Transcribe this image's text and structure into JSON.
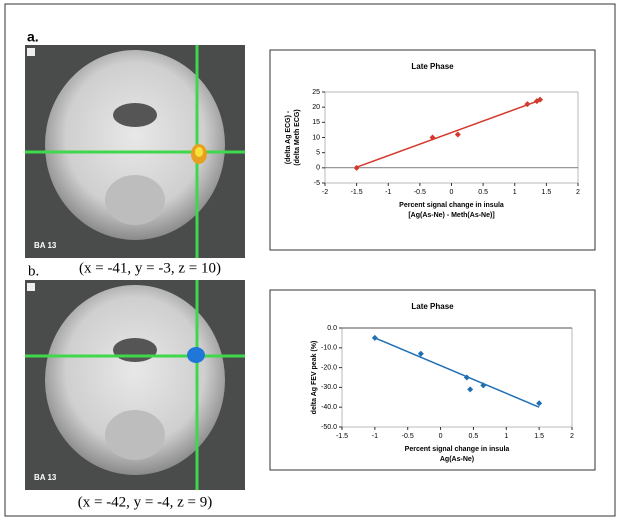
{
  "figure": {
    "panels": [
      {
        "label": "a.",
        "region": "BA 13",
        "coords": "(x = -41, y = -3, z = 10)"
      },
      {
        "label": "b.",
        "region": "BA 13",
        "coords": "(x = -42, y = -4, z = 9)"
      }
    ]
  },
  "chart_data": [
    {
      "type": "scatter",
      "title": "Late Phase",
      "xlabel": [
        "Percent signal change in insula",
        "[Ag(As-Ne) - Meth(As-Ne)]"
      ],
      "ylabel": [
        "(delta Ag ECG) -",
        "(delta Meth ECG)"
      ],
      "x": [
        -1.5,
        -0.3,
        0.1,
        1.2,
        1.35,
        1.4
      ],
      "values": [
        0,
        10,
        11,
        21,
        22,
        22.5
      ],
      "color": "#d33a2c",
      "trendline": {
        "x": [
          -1.5,
          1.4
        ],
        "y": [
          0.2,
          22.3
        ]
      },
      "xlim": [
        -2,
        2
      ],
      "xticks": [
        -2,
        -1.5,
        -1,
        -0.5,
        0,
        0.5,
        1,
        1.5,
        2
      ],
      "ylim": [
        -5,
        25
      ],
      "yticks": [
        -5,
        0,
        5,
        10,
        15,
        20,
        25
      ]
    },
    {
      "type": "scatter",
      "title": "Late Phase",
      "xlabel": [
        "Percent signal change in insula",
        "Ag(As-Ne)"
      ],
      "ylabel": [
        "delta Ag FEV peak (%)"
      ],
      "x": [
        -1,
        -0.3,
        0.4,
        0.45,
        0.65,
        1.5
      ],
      "values": [
        -5,
        -13,
        -25,
        -31,
        -29,
        -38
      ],
      "color": "#1f6fb5",
      "trendline": {
        "x": [
          -1,
          1.5
        ],
        "y": [
          -5,
          -40
        ]
      },
      "xlim": [
        -1.5,
        2
      ],
      "xticks": [
        -1.5,
        -1,
        -0.5,
        0,
        0.5,
        1,
        1.5,
        2
      ],
      "ylim": [
        -50,
        0
      ],
      "yticks": [
        {
          "value": 0,
          "label": "0.0"
        },
        {
          "value": -10,
          "label": "-10.0"
        },
        {
          "value": -20,
          "label": "-20.0"
        },
        {
          "value": -30,
          "label": "-30.0"
        },
        {
          "value": -40,
          "label": "-40.0"
        },
        {
          "value": -50,
          "label": "-50.0"
        }
      ]
    }
  ]
}
